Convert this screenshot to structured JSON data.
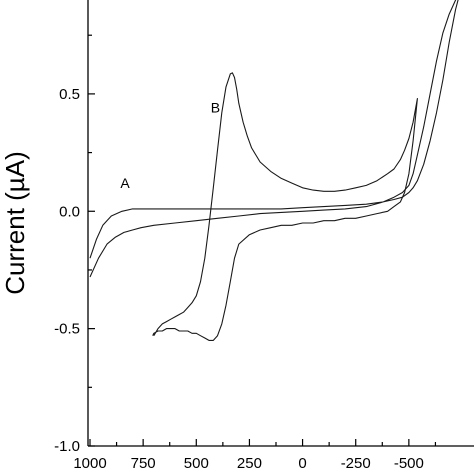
{
  "chart_data": {
    "type": "line",
    "title": "",
    "xlabel": "",
    "ylabel": "Current (µA)",
    "xlim": [
      1000,
      -750
    ],
    "ylim": [
      -1.0,
      0.9
    ],
    "x_ticks": [
      1000,
      750,
      500,
      250,
      0,
      -250,
      -500
    ],
    "x_tick_labels": [
      "1000",
      "750",
      "500",
      "250",
      "0",
      "-250",
      "-500"
    ],
    "y_ticks": [
      -1.0,
      -0.5,
      0.0,
      0.5
    ],
    "y_tick_labels": [
      "-1.0",
      "-0.5",
      "0.0",
      "0.5"
    ],
    "grid": false,
    "series": [
      {
        "name": "A",
        "label_at": [
          835,
          0.1
        ],
        "x": [
          1000,
          960,
          920,
          880,
          840,
          800,
          760,
          700,
          600,
          500,
          400,
          300,
          200,
          100,
          0,
          -100,
          -200,
          -300,
          -380,
          -430,
          -470,
          -500,
          -520,
          -540,
          -570,
          -600,
          -630,
          -660,
          -690,
          -720,
          -740,
          -720,
          -690,
          -660,
          -630,
          -600,
          -570,
          -540,
          -520,
          -500,
          -470,
          -430,
          -380,
          -300,
          -200,
          -100,
          0,
          100,
          200,
          300,
          400,
          500,
          600,
          700,
          800,
          850,
          900,
          940,
          970,
          1000
        ],
        "y": [
          -0.28,
          -0.2,
          -0.14,
          -0.11,
          -0.09,
          -0.08,
          -0.07,
          -0.06,
          -0.05,
          -0.04,
          -0.03,
          -0.02,
          -0.01,
          -0.005,
          0.0,
          0.005,
          0.01,
          0.02,
          0.04,
          0.06,
          0.08,
          0.11,
          0.16,
          0.24,
          0.36,
          0.5,
          0.64,
          0.76,
          0.84,
          0.9,
          0.93,
          0.86,
          0.72,
          0.56,
          0.42,
          0.3,
          0.2,
          0.13,
          0.1,
          0.08,
          0.06,
          0.05,
          0.04,
          0.03,
          0.025,
          0.02,
          0.015,
          0.01,
          0.01,
          0.01,
          0.01,
          0.01,
          0.01,
          0.01,
          0.01,
          0.0,
          -0.02,
          -0.06,
          -0.12,
          -0.2
        ]
      },
      {
        "name": "B",
        "label_at": [
          410,
          0.42
        ],
        "x": [
          700,
          680,
          660,
          640,
          620,
          600,
          580,
          560,
          540,
          520,
          500,
          480,
          460,
          440,
          420,
          400,
          380,
          360,
          340,
          330,
          320,
          310,
          300,
          280,
          260,
          240,
          220,
          200,
          150,
          100,
          50,
          0,
          -50,
          -100,
          -150,
          -200,
          -250,
          -300,
          -350,
          -400,
          -430,
          -460,
          -480,
          -500,
          -520,
          -540,
          -520,
          -500,
          -480,
          -460,
          -430,
          -400,
          -350,
          -300,
          -250,
          -200,
          -150,
          -100,
          -50,
          0,
          50,
          100,
          150,
          200,
          250,
          300,
          320,
          340,
          360,
          380,
          400,
          420,
          440,
          460,
          480,
          500,
          520,
          540,
          560,
          580,
          600,
          620,
          640,
          660,
          680,
          700,
          705
        ],
        "y": [
          -0.53,
          -0.5,
          -0.48,
          -0.47,
          -0.46,
          -0.45,
          -0.44,
          -0.43,
          -0.41,
          -0.39,
          -0.36,
          -0.3,
          -0.2,
          -0.06,
          0.1,
          0.26,
          0.42,
          0.53,
          0.585,
          0.59,
          0.57,
          0.52,
          0.46,
          0.38,
          0.32,
          0.27,
          0.24,
          0.21,
          0.17,
          0.14,
          0.12,
          0.1,
          0.09,
          0.085,
          0.085,
          0.09,
          0.1,
          0.11,
          0.13,
          0.16,
          0.18,
          0.22,
          0.26,
          0.31,
          0.38,
          0.48,
          0.3,
          0.16,
          0.08,
          0.04,
          0.02,
          0.0,
          -0.01,
          -0.02,
          -0.03,
          -0.03,
          -0.04,
          -0.04,
          -0.05,
          -0.05,
          -0.06,
          -0.06,
          -0.07,
          -0.08,
          -0.1,
          -0.14,
          -0.2,
          -0.3,
          -0.4,
          -0.48,
          -0.53,
          -0.55,
          -0.55,
          -0.54,
          -0.53,
          -0.52,
          -0.52,
          -0.51,
          -0.51,
          -0.51,
          -0.5,
          -0.5,
          -0.5,
          -0.51,
          -0.51,
          -0.52,
          -0.53
        ]
      }
    ]
  }
}
